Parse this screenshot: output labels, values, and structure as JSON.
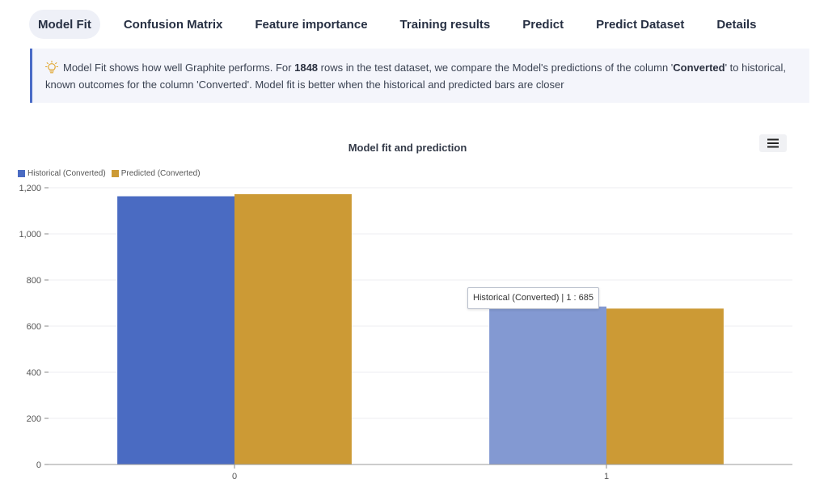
{
  "tabs": [
    {
      "label": "Model Fit",
      "active": true
    },
    {
      "label": "Confusion Matrix",
      "active": false
    },
    {
      "label": "Feature importance",
      "active": false
    },
    {
      "label": "Training results",
      "active": false
    },
    {
      "label": "Predict",
      "active": false
    },
    {
      "label": "Predict Dataset",
      "active": false
    },
    {
      "label": "Details",
      "active": false
    }
  ],
  "info": {
    "icon": "lightbulb-icon",
    "part1": "Model Fit shows how well Graphite performs. For ",
    "rows": "1848",
    "part2": " rows in the test dataset, we compare the Model's predictions of the column '",
    "column1": "Converted",
    "part3": "' to historical, known outcomes for the column 'Converted'. Model fit is better when the historical and predicted bars are closer"
  },
  "chart_menu_icon": "hamburger-menu-icon",
  "tooltip": "Historical (Converted) | 1 : 685",
  "chart_data": {
    "type": "bar",
    "title": "Model fit and prediction",
    "categories": [
      "0",
      "1"
    ],
    "series": [
      {
        "name": "Historical (Converted)",
        "values": [
          1163,
          685
        ],
        "color": "#4a6bc2",
        "highlight_color": "#8399d2"
      },
      {
        "name": "Predicted (Converted)",
        "values": [
          1172,
          676
        ],
        "color": "#cc9a35"
      }
    ],
    "highlighted": {
      "series": 0,
      "category": 1
    },
    "yticks": [
      0,
      200,
      400,
      600,
      800,
      1000,
      1200
    ],
    "ytick_labels": [
      "0",
      "200",
      "400",
      "600",
      "800",
      "1,000",
      "1,200"
    ],
    "ylim": [
      0,
      1200
    ],
    "legend": "top-left",
    "grid": true
  }
}
